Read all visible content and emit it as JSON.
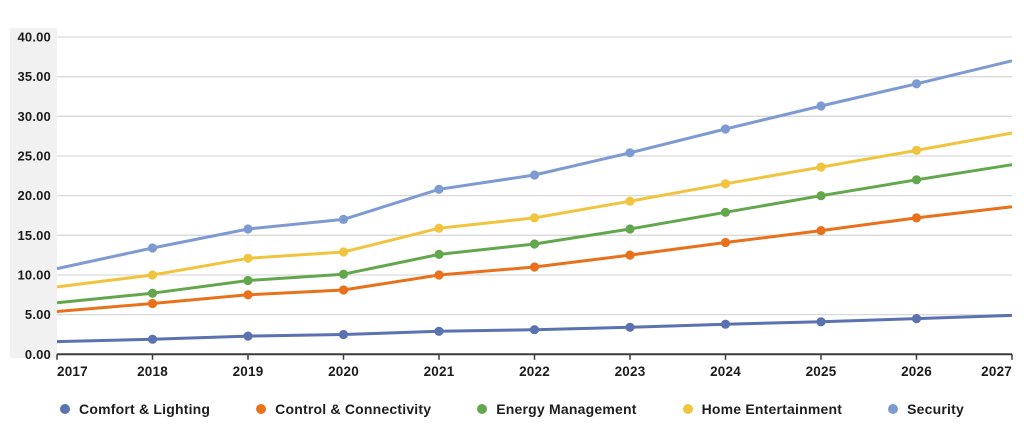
{
  "chart_data": {
    "type": "line",
    "x": [
      2017,
      2018,
      2019,
      2020,
      2021,
      2022,
      2023,
      2024,
      2025,
      2026,
      2027
    ],
    "x_tick_labels": [
      "2017",
      "2018",
      "2019",
      "2020",
      "2021",
      "2022",
      "2023",
      "2024",
      "2025",
      "2026",
      "2027"
    ],
    "y_ticks": [
      0,
      5,
      10,
      15,
      20,
      25,
      30,
      35,
      40
    ],
    "y_tick_labels": [
      "0.00",
      "5.00",
      "10.00",
      "15.00",
      "20.00",
      "25.00",
      "30.00",
      "35.00",
      "40.00"
    ],
    "ylim": [
      0,
      40
    ],
    "title": "",
    "xlabel": "",
    "ylabel": "",
    "grid": true,
    "legend_position": "bottom",
    "markers": "interior-points-only",
    "series": [
      {
        "name": "Comfort & Lighting",
        "color": "#5a72b0",
        "values": [
          1.6,
          1.9,
          2.3,
          2.5,
          2.9,
          3.1,
          3.4,
          3.8,
          4.1,
          4.5,
          4.9
        ]
      },
      {
        "name": "Control & Connectivity",
        "color": "#e9711c",
        "values": [
          5.4,
          6.4,
          7.5,
          8.1,
          10.0,
          11.0,
          12.5,
          14.1,
          15.6,
          17.2,
          18.6
        ]
      },
      {
        "name": "Energy Management",
        "color": "#63a74d",
        "values": [
          6.5,
          7.7,
          9.3,
          10.1,
          12.6,
          13.9,
          15.8,
          17.9,
          20.0,
          22.0,
          23.9
        ]
      },
      {
        "name": "Home Entertainment",
        "color": "#f0c43e",
        "values": [
          8.5,
          10.0,
          12.1,
          12.9,
          15.9,
          17.2,
          19.3,
          21.5,
          23.6,
          25.7,
          27.9
        ]
      },
      {
        "name": "Security",
        "color": "#7e9ad2",
        "values": [
          10.8,
          13.4,
          15.8,
          17.0,
          20.8,
          22.6,
          25.4,
          28.4,
          31.3,
          34.1,
          37.0
        ]
      }
    ]
  },
  "style": {
    "grid_color": "#d9d9d9",
    "axis_color": "#3c3c3c",
    "text_color": "#1c1c1c",
    "band_color": "#f1f1f1",
    "background": "#ffffff"
  }
}
